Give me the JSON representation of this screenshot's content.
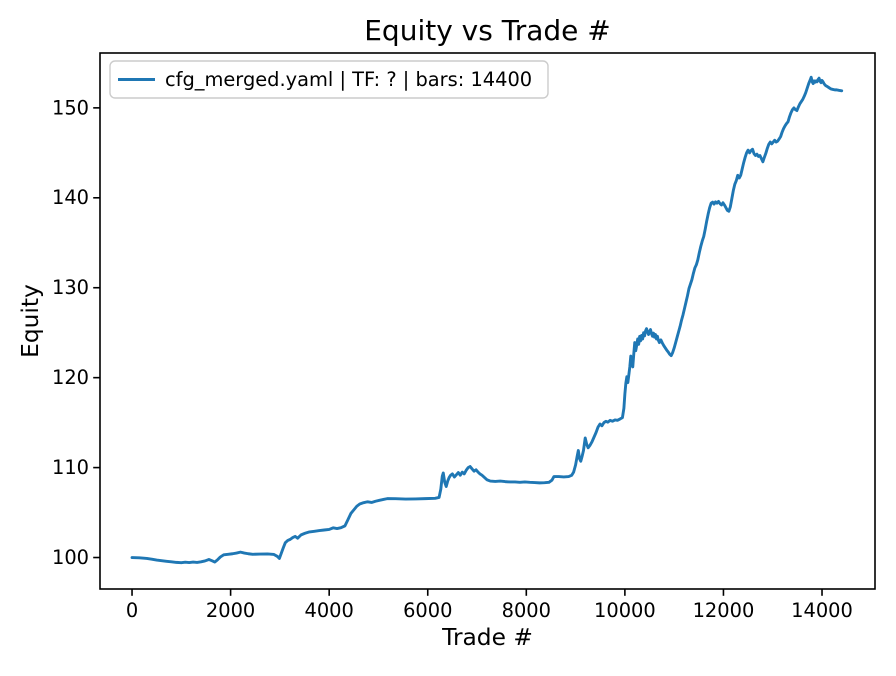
{
  "figure": {
    "background": "#ffffff",
    "axis_color": "#000000",
    "text_color": "#000000"
  },
  "chart_data": {
    "type": "line",
    "title": "Equity vs Trade #",
    "xlabel": "Trade #",
    "ylabel": "Equity",
    "grid": false,
    "legend_position": "upper left",
    "legend_frame_color": "#cccccc",
    "xlim": [
      -650,
      15075
    ],
    "ylim": [
      96.5,
      156.1
    ],
    "xticks": [
      0,
      2000,
      4000,
      6000,
      8000,
      10000,
      12000,
      14000
    ],
    "yticks": [
      100,
      110,
      120,
      130,
      140,
      150
    ],
    "series": [
      {
        "name": "cfg_merged.yaml | TF: ? | bars: 14400",
        "color": "#1f77b4",
        "points": [
          [
            0,
            100
          ],
          [
            150,
            99.97
          ],
          [
            300,
            99.9
          ],
          [
            400,
            99.82
          ],
          [
            500,
            99.72
          ],
          [
            600,
            99.65
          ],
          [
            700,
            99.58
          ],
          [
            800,
            99.52
          ],
          [
            900,
            99.46
          ],
          [
            1000,
            99.42
          ],
          [
            1080,
            99.48
          ],
          [
            1160,
            99.44
          ],
          [
            1240,
            99.5
          ],
          [
            1320,
            99.45
          ],
          [
            1400,
            99.52
          ],
          [
            1480,
            99.62
          ],
          [
            1560,
            99.78
          ],
          [
            1620,
            99.65
          ],
          [
            1680,
            99.5
          ],
          [
            1730,
            99.72
          ],
          [
            1790,
            100.05
          ],
          [
            1860,
            100.3
          ],
          [
            1950,
            100.36
          ],
          [
            2040,
            100.42
          ],
          [
            2120,
            100.5
          ],
          [
            2200,
            100.6
          ],
          [
            2280,
            100.5
          ],
          [
            2360,
            100.42
          ],
          [
            2450,
            100.36
          ],
          [
            2600,
            100.38
          ],
          [
            2750,
            100.4
          ],
          [
            2880,
            100.34
          ],
          [
            2950,
            100.12
          ],
          [
            2990,
            99.9
          ],
          [
            3030,
            100.5
          ],
          [
            3070,
            101.1
          ],
          [
            3110,
            101.65
          ],
          [
            3160,
            101.9
          ],
          [
            3210,
            102.02
          ],
          [
            3260,
            102.22
          ],
          [
            3310,
            102.35
          ],
          [
            3360,
            102.15
          ],
          [
            3430,
            102.52
          ],
          [
            3510,
            102.7
          ],
          [
            3600,
            102.85
          ],
          [
            3700,
            102.92
          ],
          [
            3800,
            103.0
          ],
          [
            3900,
            103.06
          ],
          [
            4000,
            103.12
          ],
          [
            4080,
            103.3
          ],
          [
            4160,
            103.22
          ],
          [
            4240,
            103.32
          ],
          [
            4320,
            103.52
          ],
          [
            4380,
            104.2
          ],
          [
            4440,
            104.9
          ],
          [
            4500,
            105.3
          ],
          [
            4560,
            105.7
          ],
          [
            4620,
            105.95
          ],
          [
            4700,
            106.1
          ],
          [
            4780,
            106.2
          ],
          [
            4860,
            106.12
          ],
          [
            4940,
            106.26
          ],
          [
            5020,
            106.36
          ],
          [
            5100,
            106.46
          ],
          [
            5180,
            106.55
          ],
          [
            5350,
            106.54
          ],
          [
            5550,
            106.5
          ],
          [
            5750,
            106.52
          ],
          [
            5950,
            106.55
          ],
          [
            6150,
            106.58
          ],
          [
            6230,
            106.68
          ],
          [
            6265,
            107.6
          ],
          [
            6295,
            109.05
          ],
          [
            6315,
            109.4
          ],
          [
            6345,
            108.35
          ],
          [
            6375,
            107.9
          ],
          [
            6405,
            108.5
          ],
          [
            6435,
            108.9
          ],
          [
            6465,
            109.15
          ],
          [
            6500,
            109.3
          ],
          [
            6540,
            108.95
          ],
          [
            6580,
            109.2
          ],
          [
            6620,
            109.45
          ],
          [
            6660,
            109.15
          ],
          [
            6700,
            109.5
          ],
          [
            6740,
            109.3
          ],
          [
            6780,
            109.7
          ],
          [
            6820,
            110.0
          ],
          [
            6860,
            110.12
          ],
          [
            6900,
            109.85
          ],
          [
            6940,
            109.6
          ],
          [
            6980,
            109.76
          ],
          [
            7020,
            109.5
          ],
          [
            7060,
            109.3
          ],
          [
            7100,
            109.15
          ],
          [
            7150,
            108.9
          ],
          [
            7200,
            108.65
          ],
          [
            7270,
            108.5
          ],
          [
            7370,
            108.46
          ],
          [
            7470,
            108.5
          ],
          [
            7570,
            108.44
          ],
          [
            7670,
            108.4
          ],
          [
            7770,
            108.4
          ],
          [
            7870,
            108.36
          ],
          [
            7970,
            108.4
          ],
          [
            8070,
            108.36
          ],
          [
            8170,
            108.34
          ],
          [
            8270,
            108.3
          ],
          [
            8370,
            108.32
          ],
          [
            8460,
            108.36
          ],
          [
            8520,
            108.6
          ],
          [
            8560,
            109.0
          ],
          [
            8660,
            109.0
          ],
          [
            8760,
            108.96
          ],
          [
            8860,
            109.0
          ],
          [
            8920,
            109.14
          ],
          [
            8960,
            109.5
          ],
          [
            9000,
            110.3
          ],
          [
            9030,
            111.2
          ],
          [
            9055,
            111.9
          ],
          [
            9080,
            111.0
          ],
          [
            9105,
            110.7
          ],
          [
            9130,
            111.2
          ],
          [
            9160,
            111.9
          ],
          [
            9195,
            113.3
          ],
          [
            9225,
            112.6
          ],
          [
            9255,
            112.2
          ],
          [
            9295,
            112.5
          ],
          [
            9335,
            112.9
          ],
          [
            9375,
            113.4
          ],
          [
            9415,
            113.9
          ],
          [
            9455,
            114.5
          ],
          [
            9495,
            114.85
          ],
          [
            9535,
            114.65
          ],
          [
            9575,
            115.0
          ],
          [
            9615,
            115.15
          ],
          [
            9655,
            115.05
          ],
          [
            9700,
            115.25
          ],
          [
            9750,
            115.16
          ],
          [
            9800,
            115.3
          ],
          [
            9850,
            115.26
          ],
          [
            9900,
            115.4
          ],
          [
            9950,
            115.56
          ],
          [
            9980,
            116.6
          ],
          [
            10000,
            118.2
          ],
          [
            10020,
            119.4
          ],
          [
            10040,
            120.1
          ],
          [
            10060,
            119.45
          ],
          [
            10080,
            120.3
          ],
          [
            10100,
            121.2
          ],
          [
            10120,
            122.4
          ],
          [
            10140,
            121.6
          ],
          [
            10160,
            121.2
          ],
          [
            10180,
            122.6
          ],
          [
            10200,
            123.9
          ],
          [
            10220,
            123.0
          ],
          [
            10240,
            123.6
          ],
          [
            10260,
            124.3
          ],
          [
            10280,
            123.7
          ],
          [
            10300,
            124.6
          ],
          [
            10320,
            124.1
          ],
          [
            10340,
            124.7
          ],
          [
            10360,
            124.3
          ],
          [
            10380,
            125.0
          ],
          [
            10400,
            124.65
          ],
          [
            10420,
            125.2
          ],
          [
            10440,
            125.45
          ],
          [
            10460,
            125.1
          ],
          [
            10480,
            124.8
          ],
          [
            10500,
            125.1
          ],
          [
            10520,
            125.35
          ],
          [
            10540,
            124.9
          ],
          [
            10560,
            124.6
          ],
          [
            10580,
            124.95
          ],
          [
            10600,
            124.5
          ],
          [
            10620,
            124.8
          ],
          [
            10640,
            124.3
          ],
          [
            10660,
            124.6
          ],
          [
            10680,
            124.15
          ],
          [
            10700,
            123.9
          ],
          [
            10730,
            124.2
          ],
          [
            10760,
            123.85
          ],
          [
            10790,
            123.55
          ],
          [
            10820,
            123.3
          ],
          [
            10850,
            123.05
          ],
          [
            10880,
            122.85
          ],
          [
            10910,
            122.6
          ],
          [
            10940,
            122.45
          ],
          [
            10970,
            122.8
          ],
          [
            11000,
            123.3
          ],
          [
            11030,
            123.9
          ],
          [
            11060,
            124.5
          ],
          [
            11090,
            125.1
          ],
          [
            11120,
            125.7
          ],
          [
            11150,
            126.4
          ],
          [
            11180,
            127.0
          ],
          [
            11210,
            127.7
          ],
          [
            11240,
            128.4
          ],
          [
            11270,
            129.1
          ],
          [
            11300,
            129.9
          ],
          [
            11330,
            130.4
          ],
          [
            11360,
            130.9
          ],
          [
            11390,
            131.6
          ],
          [
            11420,
            132.2
          ],
          [
            11450,
            132.55
          ],
          [
            11480,
            133.1
          ],
          [
            11510,
            133.9
          ],
          [
            11540,
            134.6
          ],
          [
            11570,
            135.2
          ],
          [
            11600,
            135.7
          ],
          [
            11630,
            136.5
          ],
          [
            11660,
            137.4
          ],
          [
            11690,
            138.2
          ],
          [
            11720,
            138.9
          ],
          [
            11750,
            139.4
          ],
          [
            11780,
            139.52
          ],
          [
            11810,
            139.3
          ],
          [
            11840,
            139.55
          ],
          [
            11870,
            139.4
          ],
          [
            11900,
            139.6
          ],
          [
            11930,
            139.35
          ],
          [
            11960,
            139.2
          ],
          [
            11990,
            139.45
          ],
          [
            12020,
            139.2
          ],
          [
            12050,
            138.9
          ],
          [
            12080,
            138.6
          ],
          [
            12110,
            138.5
          ],
          [
            12140,
            139.0
          ],
          [
            12170,
            139.9
          ],
          [
            12200,
            140.8
          ],
          [
            12230,
            141.5
          ],
          [
            12260,
            141.9
          ],
          [
            12290,
            142.5
          ],
          [
            12320,
            142.2
          ],
          [
            12350,
            142.5
          ],
          [
            12380,
            143.2
          ],
          [
            12410,
            143.9
          ],
          [
            12440,
            144.5
          ],
          [
            12470,
            145.0
          ],
          [
            12500,
            145.3
          ],
          [
            12530,
            145.0
          ],
          [
            12560,
            145.25
          ],
          [
            12590,
            145.4
          ],
          [
            12620,
            144.9
          ],
          [
            12650,
            144.7
          ],
          [
            12680,
            144.85
          ],
          [
            12710,
            144.6
          ],
          [
            12740,
            144.7
          ],
          [
            12770,
            144.35
          ],
          [
            12800,
            144.0
          ],
          [
            12830,
            144.5
          ],
          [
            12860,
            144.95
          ],
          [
            12890,
            145.5
          ],
          [
            12920,
            145.95
          ],
          [
            12950,
            146.2
          ],
          [
            12980,
            146.0
          ],
          [
            13010,
            146.2
          ],
          [
            13040,
            146.4
          ],
          [
            13070,
            146.2
          ],
          [
            13100,
            146.3
          ],
          [
            13130,
            146.55
          ],
          [
            13160,
            146.8
          ],
          [
            13190,
            147.3
          ],
          [
            13220,
            147.7
          ],
          [
            13250,
            148.0
          ],
          [
            13280,
            148.25
          ],
          [
            13310,
            148.45
          ],
          [
            13340,
            149.0
          ],
          [
            13370,
            149.45
          ],
          [
            13400,
            149.8
          ],
          [
            13430,
            150.0
          ],
          [
            13460,
            149.8
          ],
          [
            13490,
            149.7
          ],
          [
            13520,
            150.1
          ],
          [
            13550,
            150.45
          ],
          [
            13580,
            150.7
          ],
          [
            13610,
            150.95
          ],
          [
            13640,
            151.3
          ],
          [
            13670,
            151.7
          ],
          [
            13700,
            152.2
          ],
          [
            13730,
            152.7
          ],
          [
            13760,
            153.1
          ],
          [
            13780,
            153.4
          ],
          [
            13800,
            152.9
          ],
          [
            13820,
            152.7
          ],
          [
            13840,
            153.0
          ],
          [
            13860,
            152.85
          ],
          [
            13880,
            153.0
          ],
          [
            13900,
            152.9
          ],
          [
            13920,
            153.15
          ],
          [
            13940,
            153.3
          ],
          [
            13960,
            152.95
          ],
          [
            13980,
            152.8
          ],
          [
            14000,
            153.05
          ],
          [
            14020,
            152.9
          ],
          [
            14040,
            152.7
          ],
          [
            14060,
            152.55
          ],
          [
            14080,
            152.45
          ],
          [
            14100,
            152.4
          ],
          [
            14140,
            152.25
          ],
          [
            14180,
            152.1
          ],
          [
            14220,
            152.05
          ],
          [
            14260,
            152.0
          ],
          [
            14300,
            152.0
          ],
          [
            14340,
            151.95
          ],
          [
            14400,
            151.9
          ]
        ]
      }
    ]
  }
}
